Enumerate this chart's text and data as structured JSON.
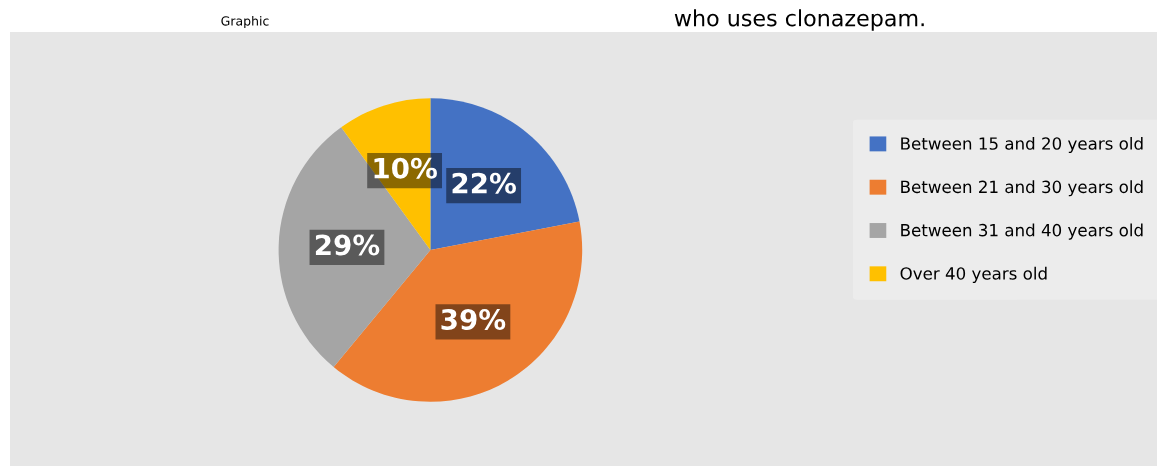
{
  "chart_data": {
    "type": "pie",
    "title": "who uses clonazepam.",
    "annotations": [
      "Graphic"
    ],
    "categories": [
      "Between 15 and 20 years old",
      "Between 21 and 30 years old",
      "Between 31 and 40 years old",
      "Over 40 years old"
    ],
    "values": [
      22,
      39,
      29,
      10
    ],
    "value_labels": [
      "22%",
      "39%",
      "29%",
      "10%"
    ],
    "colors": [
      "#4472c4",
      "#ed7d31",
      "#a5a5a5",
      "#ffc000"
    ],
    "legend": "right"
  }
}
